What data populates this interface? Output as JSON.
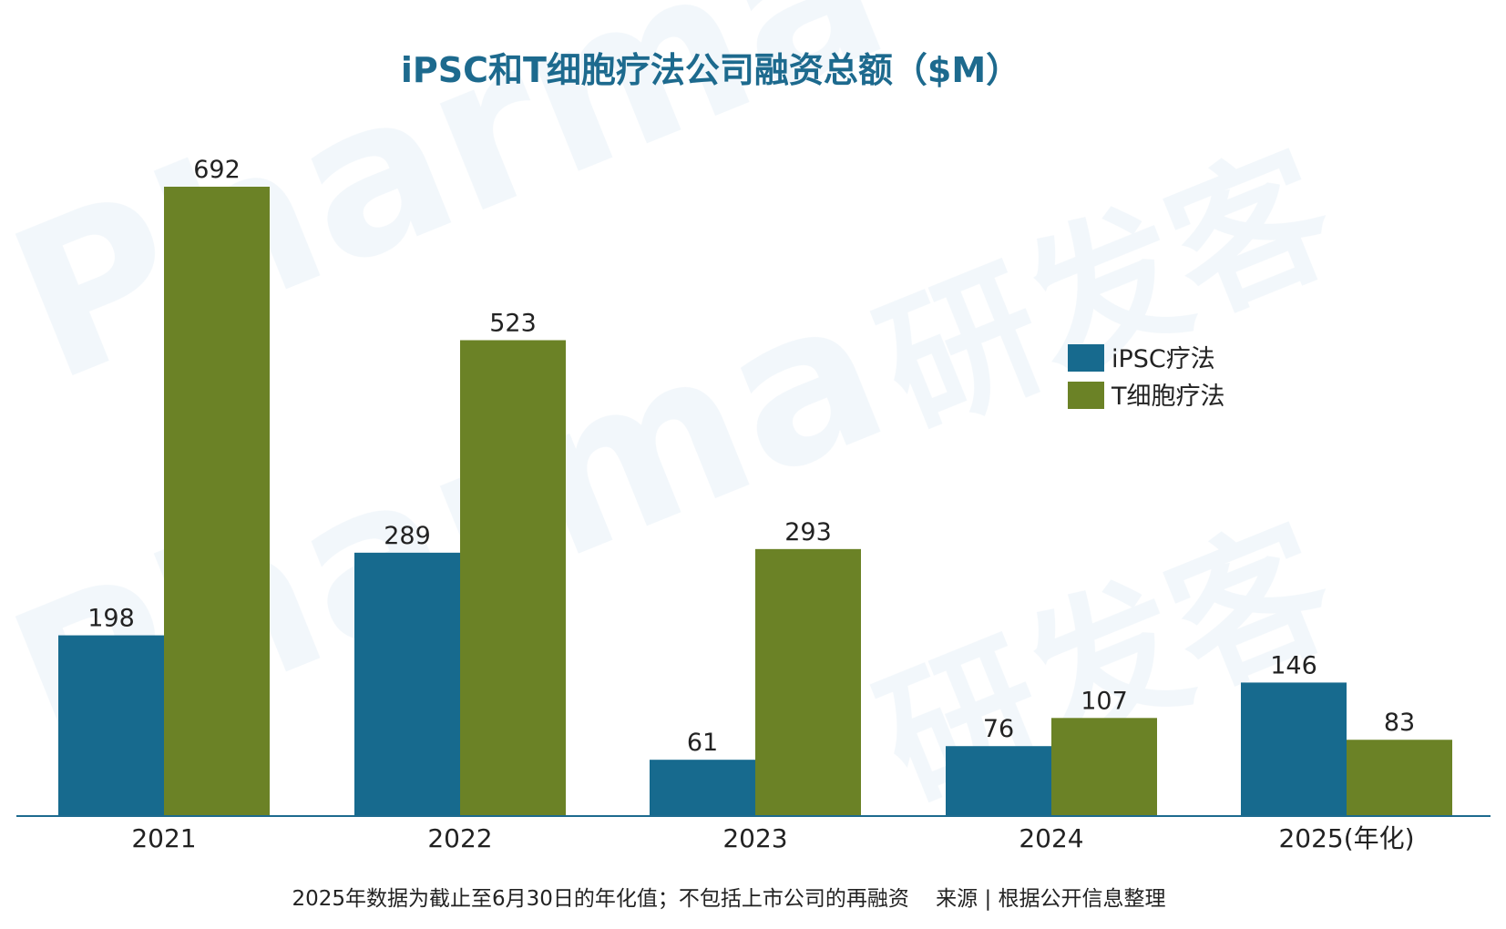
{
  "chart_data": {
    "type": "bar",
    "title": "iPSC和T细胞疗法公司融资总额（$M）",
    "categories": [
      "2021",
      "2022",
      "2023",
      "2024",
      "2025(年化)"
    ],
    "series": [
      {
        "name": "iPSC疗法",
        "values": [
          198,
          289,
          61,
          76,
          146
        ],
        "color": "#176a8e"
      },
      {
        "name": "T细胞疗法",
        "values": [
          692,
          523,
          293,
          107,
          83
        ],
        "color": "#6b8226"
      }
    ],
    "ylim": [
      0,
      692
    ],
    "grid": false,
    "legend_position": "right",
    "footnote": "2025年数据为截止至6月30日的年化值；不包括上市公司的再融资    来源 | 根据公开信息整理"
  },
  "colors": {
    "title": "#1d6a8e",
    "axis": "#1d6a8e",
    "text": "#222222"
  }
}
